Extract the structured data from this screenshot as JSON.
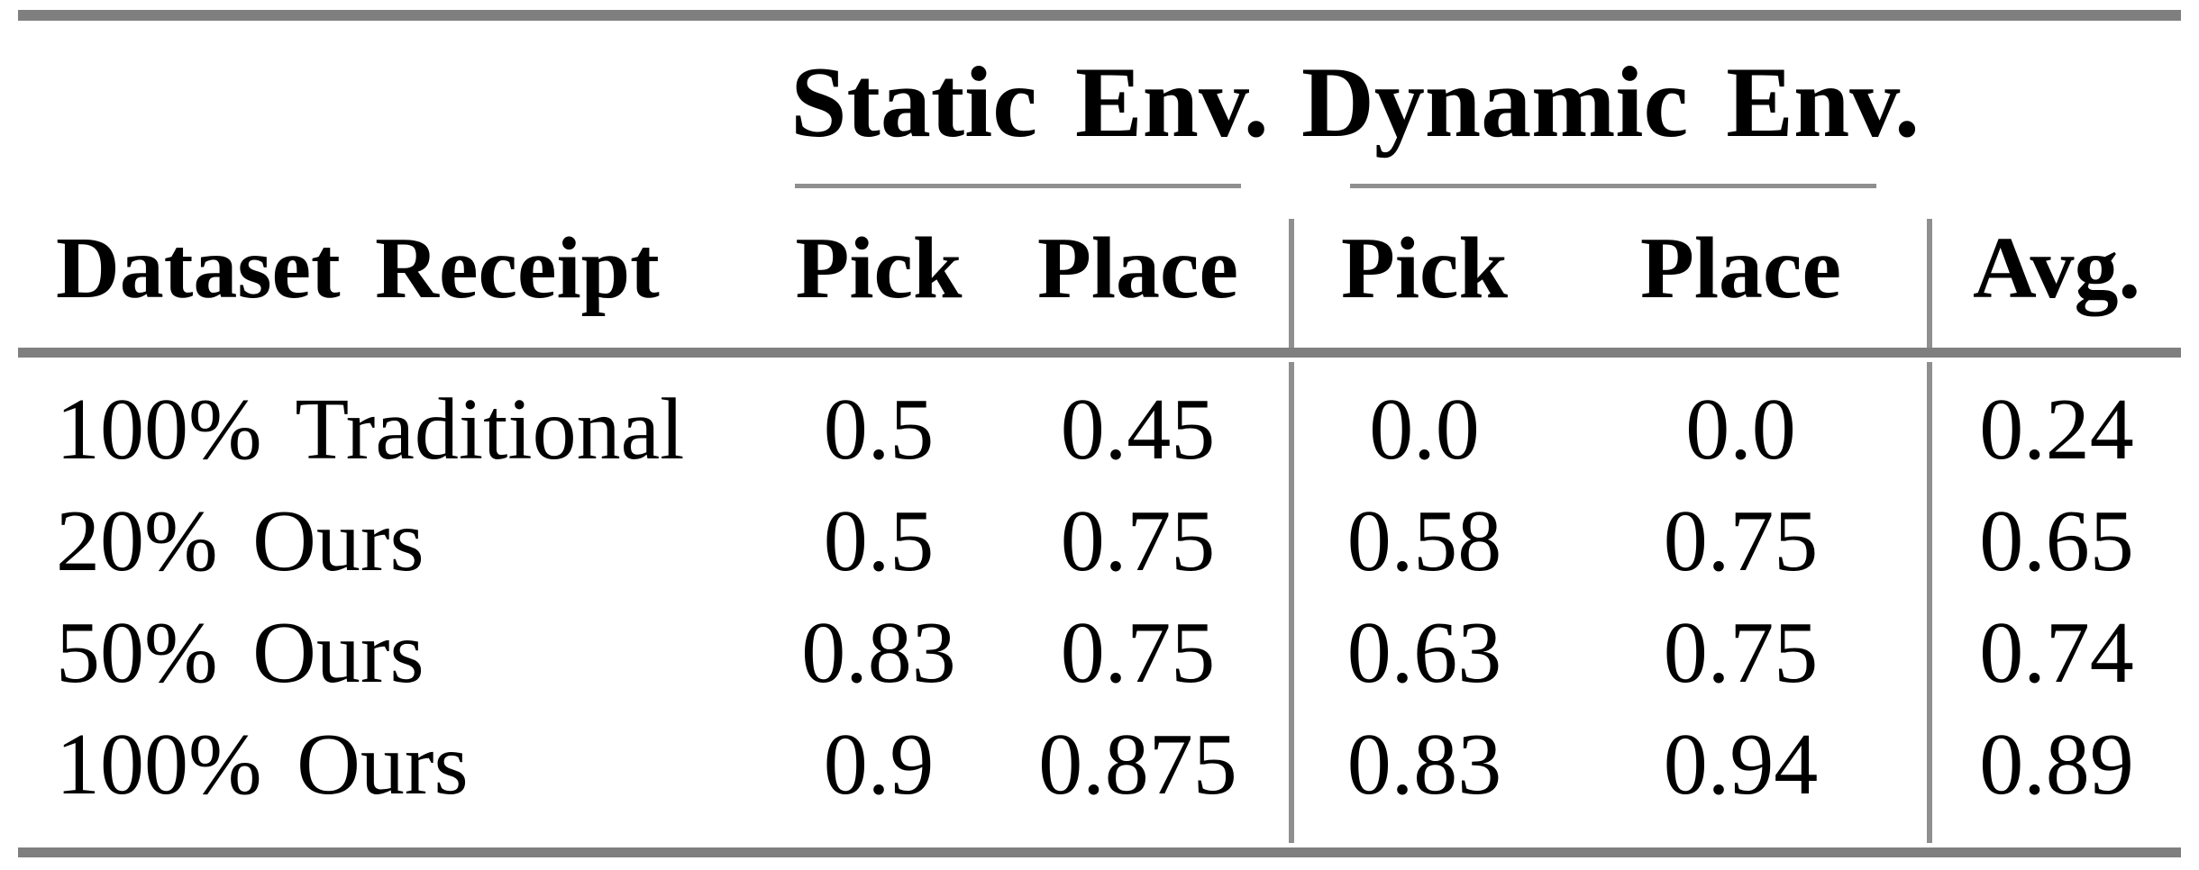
{
  "colors": {
    "background": "#ffffff",
    "text": "#000000",
    "rule_thick": "#7f7f7f",
    "rule_thin": "#8f8f8f"
  },
  "table": {
    "group_headers": {
      "static": "Static Env.",
      "dynamic": "Dynamic Env."
    },
    "column_headers": {
      "row_label": "Dataset Receipt",
      "static_pick": "Pick",
      "static_place": "Place",
      "dynamic_pick": "Pick",
      "dynamic_place": "Place",
      "avg": "Avg."
    },
    "rows": [
      {
        "label": "100% Traditional",
        "static_pick": "0.5",
        "static_place": "0.45",
        "dynamic_pick": "0.0",
        "dynamic_place": "0.0",
        "avg": "0.24"
      },
      {
        "label": "20% Ours",
        "static_pick": "0.5",
        "static_place": "0.75",
        "dynamic_pick": "0.58",
        "dynamic_place": "0.75",
        "avg": "0.65"
      },
      {
        "label": "50% Ours",
        "static_pick": "0.83",
        "static_place": "0.75",
        "dynamic_pick": "0.63",
        "dynamic_place": "0.75",
        "avg": "0.74"
      },
      {
        "label": "100% Ours",
        "static_pick": "0.9",
        "static_place": "0.875",
        "dynamic_pick": "0.83",
        "dynamic_place": "0.94",
        "avg": "0.89"
      }
    ]
  },
  "chart_data": {
    "type": "table",
    "title": "",
    "column_groups": [
      "Static Env.",
      "Dynamic Env."
    ],
    "columns": [
      "Dataset Receipt",
      "Static Env. Pick",
      "Static Env. Place",
      "Dynamic Env. Pick",
      "Dynamic Env. Place",
      "Avg."
    ],
    "rows": [
      [
        "100% Traditional",
        0.5,
        0.45,
        0.0,
        0.0,
        0.24
      ],
      [
        "20% Ours",
        0.5,
        0.75,
        0.58,
        0.75,
        0.65
      ],
      [
        "50% Ours",
        0.83,
        0.75,
        0.63,
        0.75,
        0.74
      ],
      [
        "100% Ours",
        0.9,
        0.875,
        0.83,
        0.94,
        0.89
      ]
    ]
  }
}
